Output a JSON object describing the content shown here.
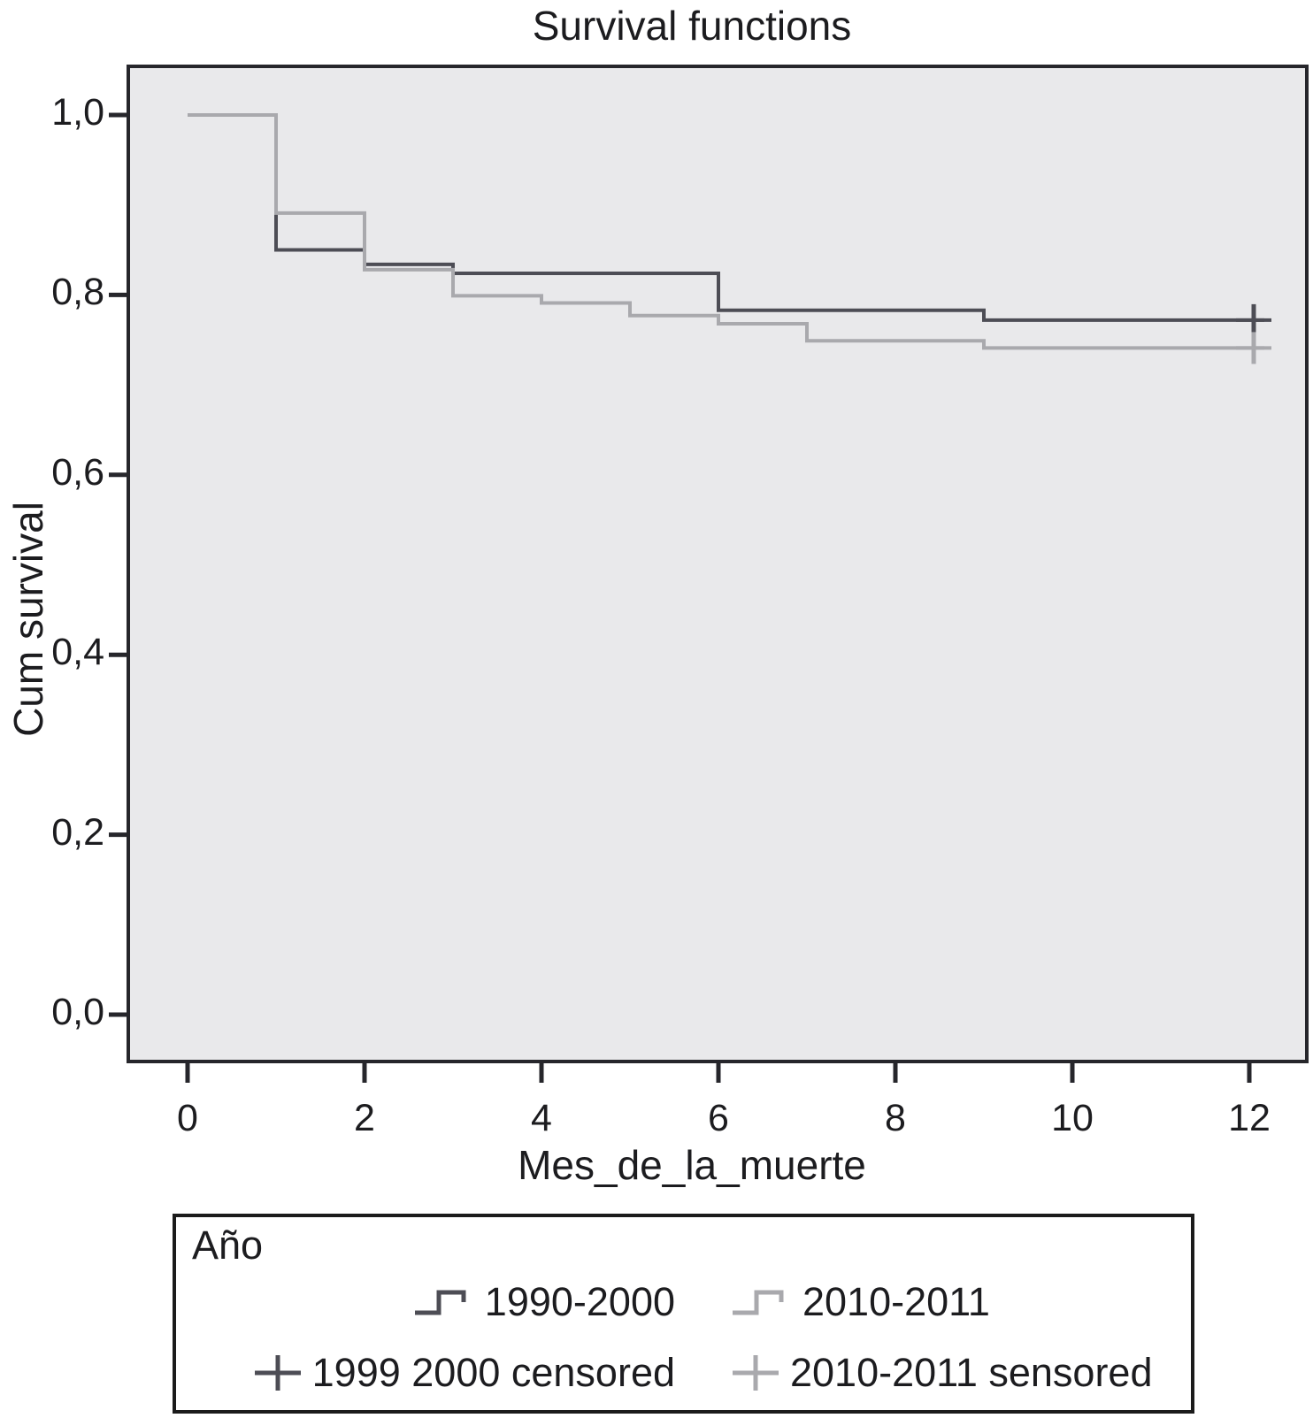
{
  "title": "Survival functions",
  "axes": {
    "x_label": "Mes_de_la_muerte",
    "y_label": "Cum survival",
    "x_ticks": [
      {
        "v": 0,
        "label": "0"
      },
      {
        "v": 2,
        "label": "2"
      },
      {
        "v": 4,
        "label": "4"
      },
      {
        "v": 6,
        "label": "6"
      },
      {
        "v": 8,
        "label": "8"
      },
      {
        "v": 10,
        "label": "10"
      },
      {
        "v": 12,
        "label": "12"
      }
    ],
    "y_ticks": [
      {
        "v": 1.0,
        "label": "1,0"
      },
      {
        "v": 0.8,
        "label": "0,8"
      },
      {
        "v": 0.6,
        "label": "0,6"
      },
      {
        "v": 0.4,
        "label": "0,4"
      },
      {
        "v": 0.2,
        "label": "0,2"
      },
      {
        "v": 0.0,
        "label": "0,0"
      }
    ]
  },
  "colors": {
    "series_dark": "#4d4d55",
    "series_light": "#a9a9ad",
    "frame": "#26262b",
    "plot_bg": "#e9e9eb",
    "text": "#1c1c1f"
  },
  "chart_data": {
    "type": "line",
    "subtype": "kaplan-meier-step",
    "title": "Survival functions",
    "xlabel": "Mes_de_la_muerte",
    "ylabel": "Cum survival",
    "xlim": [
      -0.67,
      12.65
    ],
    "ylim": [
      -0.05,
      1.05
    ],
    "grid": false,
    "legend_position": "bottom",
    "series": [
      {
        "name": "1990-2000",
        "color": "#4d4d55",
        "points": [
          [
            0,
            1.0
          ],
          [
            1,
            1.0
          ],
          [
            1,
            0.85
          ],
          [
            2,
            0.85
          ],
          [
            2,
            0.834
          ],
          [
            3,
            0.834
          ],
          [
            3,
            0.824
          ],
          [
            6,
            0.824
          ],
          [
            6,
            0.783
          ],
          [
            9,
            0.783
          ],
          [
            9,
            0.772
          ],
          [
            12.17,
            0.772
          ]
        ],
        "censored_points": [
          [
            12.05,
            0.772
          ]
        ]
      },
      {
        "name": "2010-2011",
        "color": "#a9a9ad",
        "points": [
          [
            0,
            1.0
          ],
          [
            1,
            1.0
          ],
          [
            1,
            0.891
          ],
          [
            2,
            0.891
          ],
          [
            2,
            0.828
          ],
          [
            3,
            0.828
          ],
          [
            3,
            0.799
          ],
          [
            4,
            0.799
          ],
          [
            4,
            0.791
          ],
          [
            5,
            0.791
          ],
          [
            5,
            0.777
          ],
          [
            6,
            0.777
          ],
          [
            6,
            0.768
          ],
          [
            7,
            0.768
          ],
          [
            7,
            0.749
          ],
          [
            9,
            0.749
          ],
          [
            9,
            0.741
          ],
          [
            12.17,
            0.741
          ]
        ],
        "censored_points": [
          [
            12.05,
            0.741
          ]
        ]
      }
    ]
  },
  "legend": {
    "title": "Año",
    "items": [
      {
        "label": "1990-2000",
        "symbol": "step-line",
        "color": "#4d4d55"
      },
      {
        "label": "2010-2011",
        "symbol": "step-line",
        "color": "#a9a9ad"
      },
      {
        "label": "1999 2000 censored",
        "symbol": "plus",
        "color": "#4d4d55"
      },
      {
        "label": "2010-2011 sensored",
        "symbol": "plus",
        "color": "#a9a9ad"
      }
    ]
  }
}
